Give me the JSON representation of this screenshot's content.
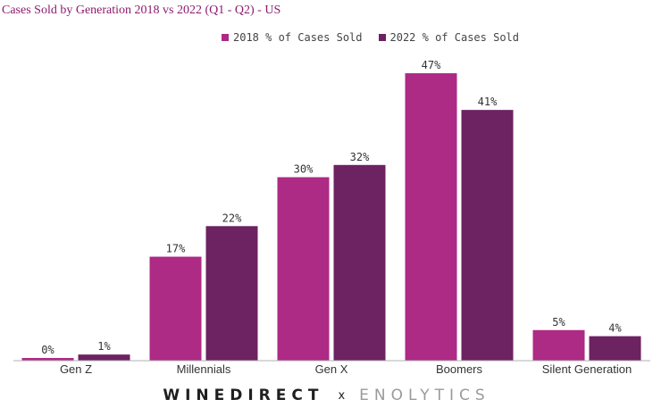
{
  "chart_data": {
    "type": "bar",
    "title": "Cases Sold by Generation 2018 vs 2022 (Q1 - Q2) - US",
    "xlabel": "",
    "ylabel": "",
    "ylim": [
      0,
      50
    ],
    "grid": false,
    "legend_position": "top-center",
    "categories": [
      "Gen Z",
      "Millennials",
      "Gen X",
      "Boomers",
      "Silent Generation"
    ],
    "series": [
      {
        "name": "2018 % of Cases Sold",
        "color": "#ad2a85",
        "values": [
          0,
          17,
          30,
          47,
          5
        ],
        "labels": [
          "0%",
          "17%",
          "30%",
          "47%",
          "5%"
        ]
      },
      {
        "name": "2022 % of Cases Sold",
        "color": "#6d2261",
        "values": [
          1,
          22,
          32,
          41,
          4
        ],
        "labels": [
          "1%",
          "22%",
          "32%",
          "41%",
          "4%"
        ]
      }
    ]
  },
  "footer": {
    "left_brand": "WINEDIRECT",
    "separator": "x",
    "right_brand": "ENOLYTICS"
  }
}
